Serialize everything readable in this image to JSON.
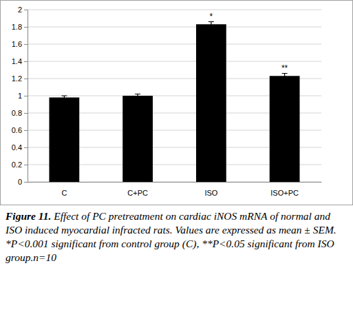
{
  "chart_data": {
    "type": "bar",
    "categories": [
      "C",
      "C+PC",
      "ISO",
      "ISO+PC"
    ],
    "values": [
      0.98,
      1.0,
      1.83,
      1.23
    ],
    "errors": [
      0.02,
      0.02,
      0.03,
      0.03
    ],
    "annotations": [
      null,
      null,
      "*",
      "**"
    ],
    "color": "#000000",
    "ylim": [
      0,
      2
    ],
    "yticks": [
      0,
      0.2,
      0.4,
      0.6,
      0.8,
      1,
      1.2,
      1.4,
      1.6,
      1.8,
      2
    ],
    "grid": true,
    "caption_label": "Figure 11.",
    "caption": "Effect of PC pretreatment on cardiac iNOS mRNA of normal and ISO induced myocardial infracted rats. Values are expressed as mean ± SEM. *P<0.001 significant from control group (C), **P<0.05 significant from ISO group.n=10"
  }
}
